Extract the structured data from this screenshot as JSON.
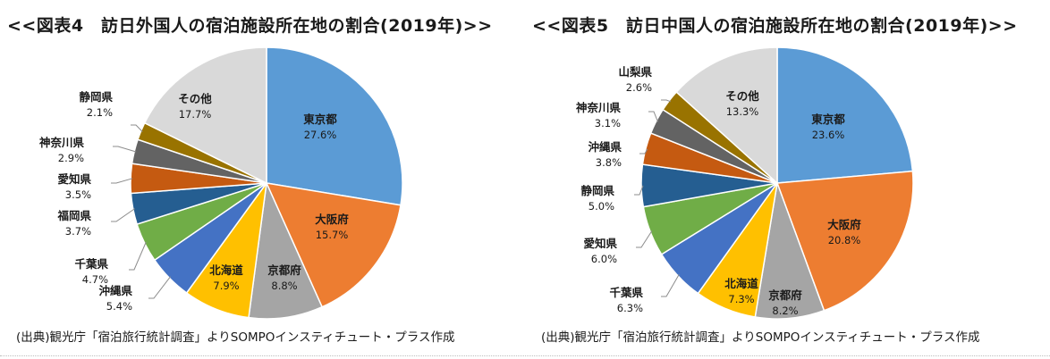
{
  "colors": {
    "東京都": "#5b9bd5",
    "大阪府": "#ed7d31",
    "京都府": "#a5a5a5",
    "北海道": "#ffc000",
    "沖縄県": "#4472c4",
    "千葉県": "#4472c4",
    "愛知県": "#70ad47",
    "静岡県": "#255e91",
    "福岡県": "#255e91",
    "神奈川県": "#636363",
    "山梨県": "#997300",
    "その他": "#d9d9d9",
    "沖縄県_c5": "#c55a11"
  },
  "chart_data": [
    {
      "type": "pie",
      "title": "<<図表4　訪日外国人の宿泊施設所在地の割合(2019年)>>",
      "source": "(出典)観光庁「宿泊旅行統計調査」よりSOMPOインスティチュート・プラス作成",
      "slices": [
        {
          "label": "東京都",
          "value": 27.6,
          "value_text": "27.6%",
          "color": "#5b9bd5"
        },
        {
          "label": "大阪府",
          "value": 15.7,
          "value_text": "15.7%",
          "color": "#ed7d31"
        },
        {
          "label": "京都府",
          "value": 8.8,
          "value_text": "8.8%",
          "color": "#a5a5a5"
        },
        {
          "label": "北海道",
          "value": 7.9,
          "value_text": "7.9%",
          "color": "#ffc000"
        },
        {
          "label": "沖縄県",
          "value": 5.4,
          "value_text": "5.4%",
          "color": "#4472c4"
        },
        {
          "label": "千葉県",
          "value": 4.7,
          "value_text": "4.7%",
          "color": "#70ad47"
        },
        {
          "label": "福岡県",
          "value": 3.7,
          "value_text": "3.7%",
          "color": "#255e91"
        },
        {
          "label": "愛知県",
          "value": 3.5,
          "value_text": "3.5%",
          "color": "#c55a11"
        },
        {
          "label": "神奈川県",
          "value": 2.9,
          "value_text": "2.9%",
          "color": "#636363"
        },
        {
          "label": "静岡県",
          "value": 2.1,
          "value_text": "2.1%",
          "color": "#997300"
        },
        {
          "label": "その他",
          "value": 17.7,
          "value_text": "17.7%",
          "color": "#d9d9d9"
        }
      ]
    },
    {
      "type": "pie",
      "title": "<<図表5　訪日中国人の宿泊施設所在地の割合(2019年)>>",
      "source": "(出典)観光庁「宿泊旅行統計調査」よりSOMPOインスティチュート・プラス作成",
      "slices": [
        {
          "label": "東京都",
          "value": 23.6,
          "value_text": "23.6%",
          "color": "#5b9bd5"
        },
        {
          "label": "大阪府",
          "value": 20.8,
          "value_text": "20.8%",
          "color": "#ed7d31"
        },
        {
          "label": "京都府",
          "value": 8.2,
          "value_text": "8.2%",
          "color": "#a5a5a5"
        },
        {
          "label": "北海道",
          "value": 7.3,
          "value_text": "7.3%",
          "color": "#ffc000"
        },
        {
          "label": "千葉県",
          "value": 6.3,
          "value_text": "6.3%",
          "color": "#4472c4"
        },
        {
          "label": "愛知県",
          "value": 6.0,
          "value_text": "6.0%",
          "color": "#70ad47"
        },
        {
          "label": "静岡県",
          "value": 5.0,
          "value_text": "5.0%",
          "color": "#255e91"
        },
        {
          "label": "沖縄県",
          "value": 3.8,
          "value_text": "3.8%",
          "color": "#c55a11"
        },
        {
          "label": "神奈川県",
          "value": 3.1,
          "value_text": "3.1%",
          "color": "#636363"
        },
        {
          "label": "山梨県",
          "value": 2.6,
          "value_text": "2.6%",
          "color": "#997300"
        },
        {
          "label": "その他",
          "value": 13.3,
          "value_text": "13.3%",
          "color": "#d9d9d9"
        }
      ]
    }
  ]
}
